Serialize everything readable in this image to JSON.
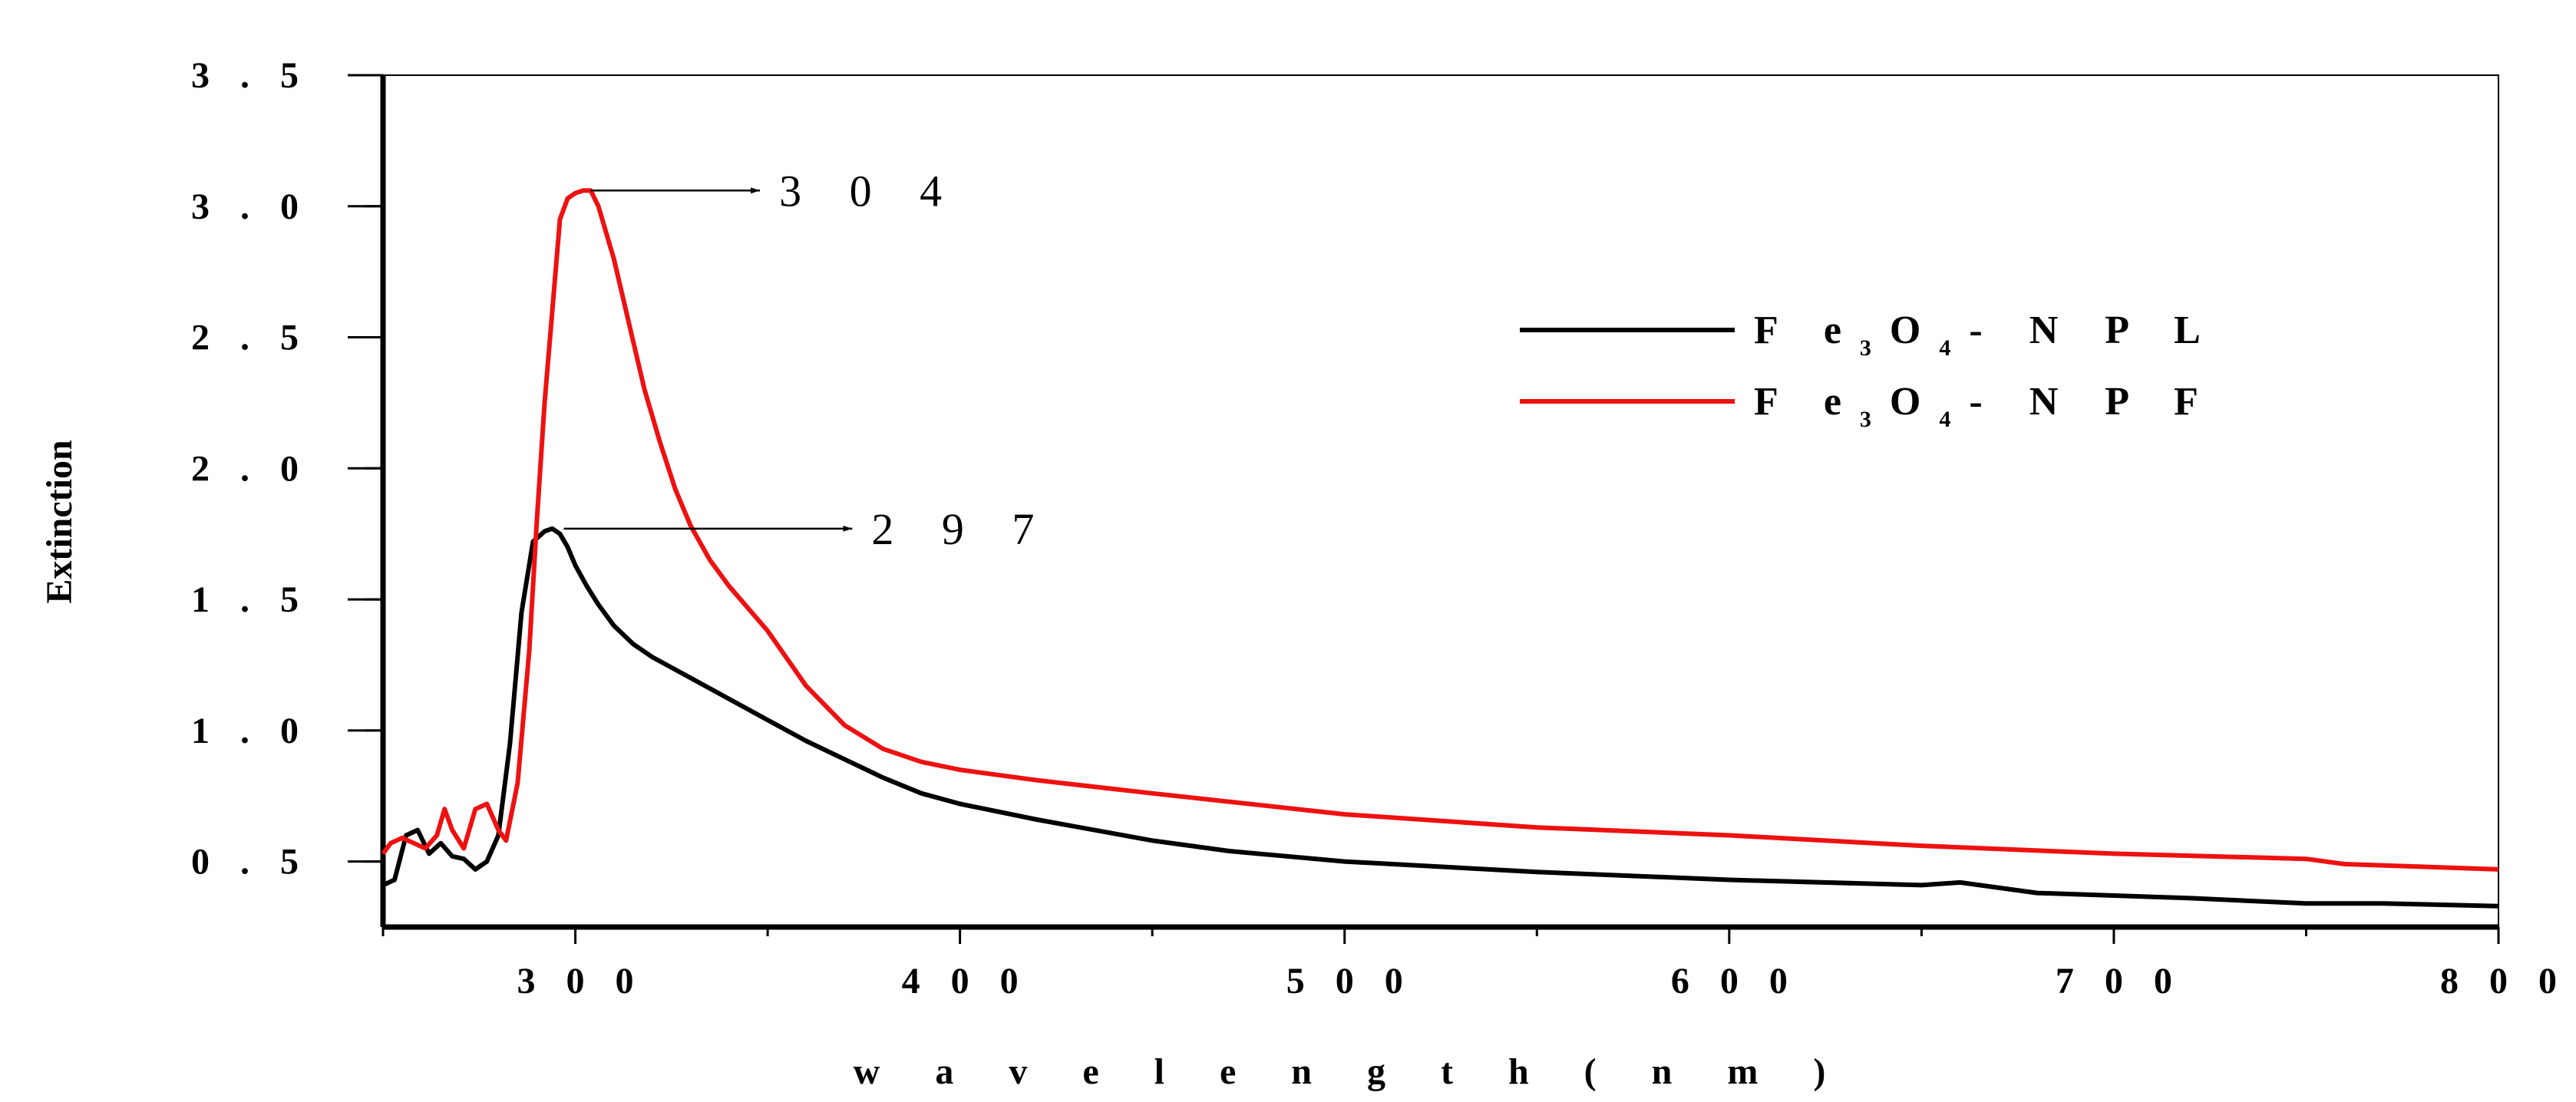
{
  "chart_data": {
    "type": "line",
    "title": "",
    "xlabel": "w a v e l e n g t h ( n m )",
    "ylabel": "Extinction",
    "xlim": [
      250,
      800
    ],
    "ylim": [
      0.25,
      3.5
    ],
    "x_ticks": [
      300,
      400,
      500,
      600,
      700,
      800
    ],
    "x_tick_labels": [
      "3 0 0",
      "4 0 0",
      "5 0 0",
      "6 0 0",
      "7 0 0",
      "8 0 0"
    ],
    "y_ticks": [
      0.5,
      1.0,
      1.5,
      2.0,
      2.5,
      3.0,
      3.5
    ],
    "y_tick_labels": [
      "0 . 5",
      "1 . 0",
      "1 . 5",
      "2 . 0",
      "2 . 5",
      "3 . 0",
      "3 . 5"
    ],
    "legend_position": "top-right",
    "series": [
      {
        "name": "Fe3O4-NPL",
        "label_parts": [
          "F e",
          "3",
          "O",
          "4",
          "- N P L"
        ],
        "color": "#000000",
        "x": [
          250,
          253,
          256,
          259,
          262,
          265,
          268,
          271,
          274,
          277,
          280,
          283,
          286,
          289,
          292,
          294,
          296,
          298,
          300,
          303,
          306,
          310,
          315,
          320,
          330,
          340,
          350,
          360,
          370,
          380,
          390,
          400,
          420,
          450,
          470,
          500,
          550,
          600,
          650,
          660,
          680,
          700,
          720,
          750,
          770,
          800
        ],
        "values": [
          0.41,
          0.43,
          0.6,
          0.62,
          0.53,
          0.57,
          0.52,
          0.51,
          0.47,
          0.5,
          0.6,
          0.95,
          1.45,
          1.72,
          1.76,
          1.77,
          1.75,
          1.7,
          1.63,
          1.55,
          1.48,
          1.4,
          1.33,
          1.28,
          1.2,
          1.12,
          1.04,
          0.96,
          0.89,
          0.82,
          0.76,
          0.72,
          0.66,
          0.58,
          0.54,
          0.5,
          0.46,
          0.43,
          0.41,
          0.42,
          0.38,
          0.37,
          0.36,
          0.34,
          0.34,
          0.33
        ]
      },
      {
        "name": "Fe3O4-NPF",
        "label_parts": [
          "F e",
          "3",
          "O",
          "4",
          "- N P F"
        ],
        "color": "#ee1111",
        "x": [
          250,
          252,
          255,
          258,
          261,
          264,
          266,
          268,
          271,
          274,
          277,
          280,
          282,
          285,
          288,
          290,
          292,
          294,
          296,
          298,
          300,
          302,
          304,
          306,
          308,
          310,
          314,
          318,
          322,
          326,
          330,
          335,
          340,
          350,
          360,
          370,
          380,
          390,
          400,
          420,
          450,
          500,
          550,
          600,
          650,
          700,
          750,
          760,
          800
        ],
        "values": [
          0.53,
          0.57,
          0.59,
          0.57,
          0.55,
          0.6,
          0.7,
          0.62,
          0.55,
          0.7,
          0.72,
          0.62,
          0.58,
          0.8,
          1.3,
          1.8,
          2.25,
          2.6,
          2.95,
          3.03,
          3.05,
          3.06,
          3.06,
          3.0,
          2.9,
          2.8,
          2.55,
          2.3,
          2.1,
          1.92,
          1.78,
          1.65,
          1.55,
          1.38,
          1.17,
          1.02,
          0.93,
          0.88,
          0.85,
          0.81,
          0.76,
          0.68,
          0.63,
          0.6,
          0.56,
          0.53,
          0.51,
          0.49,
          0.47
        ]
      }
    ],
    "annotations": [
      {
        "text": "3 0 4",
        "peak_x": 304,
        "peak_y": 3.06,
        "arrow_to_x": 348
      },
      {
        "text": "2 9 7",
        "peak_x": 297,
        "peak_y": 1.77,
        "arrow_to_x": 372
      }
    ]
  }
}
